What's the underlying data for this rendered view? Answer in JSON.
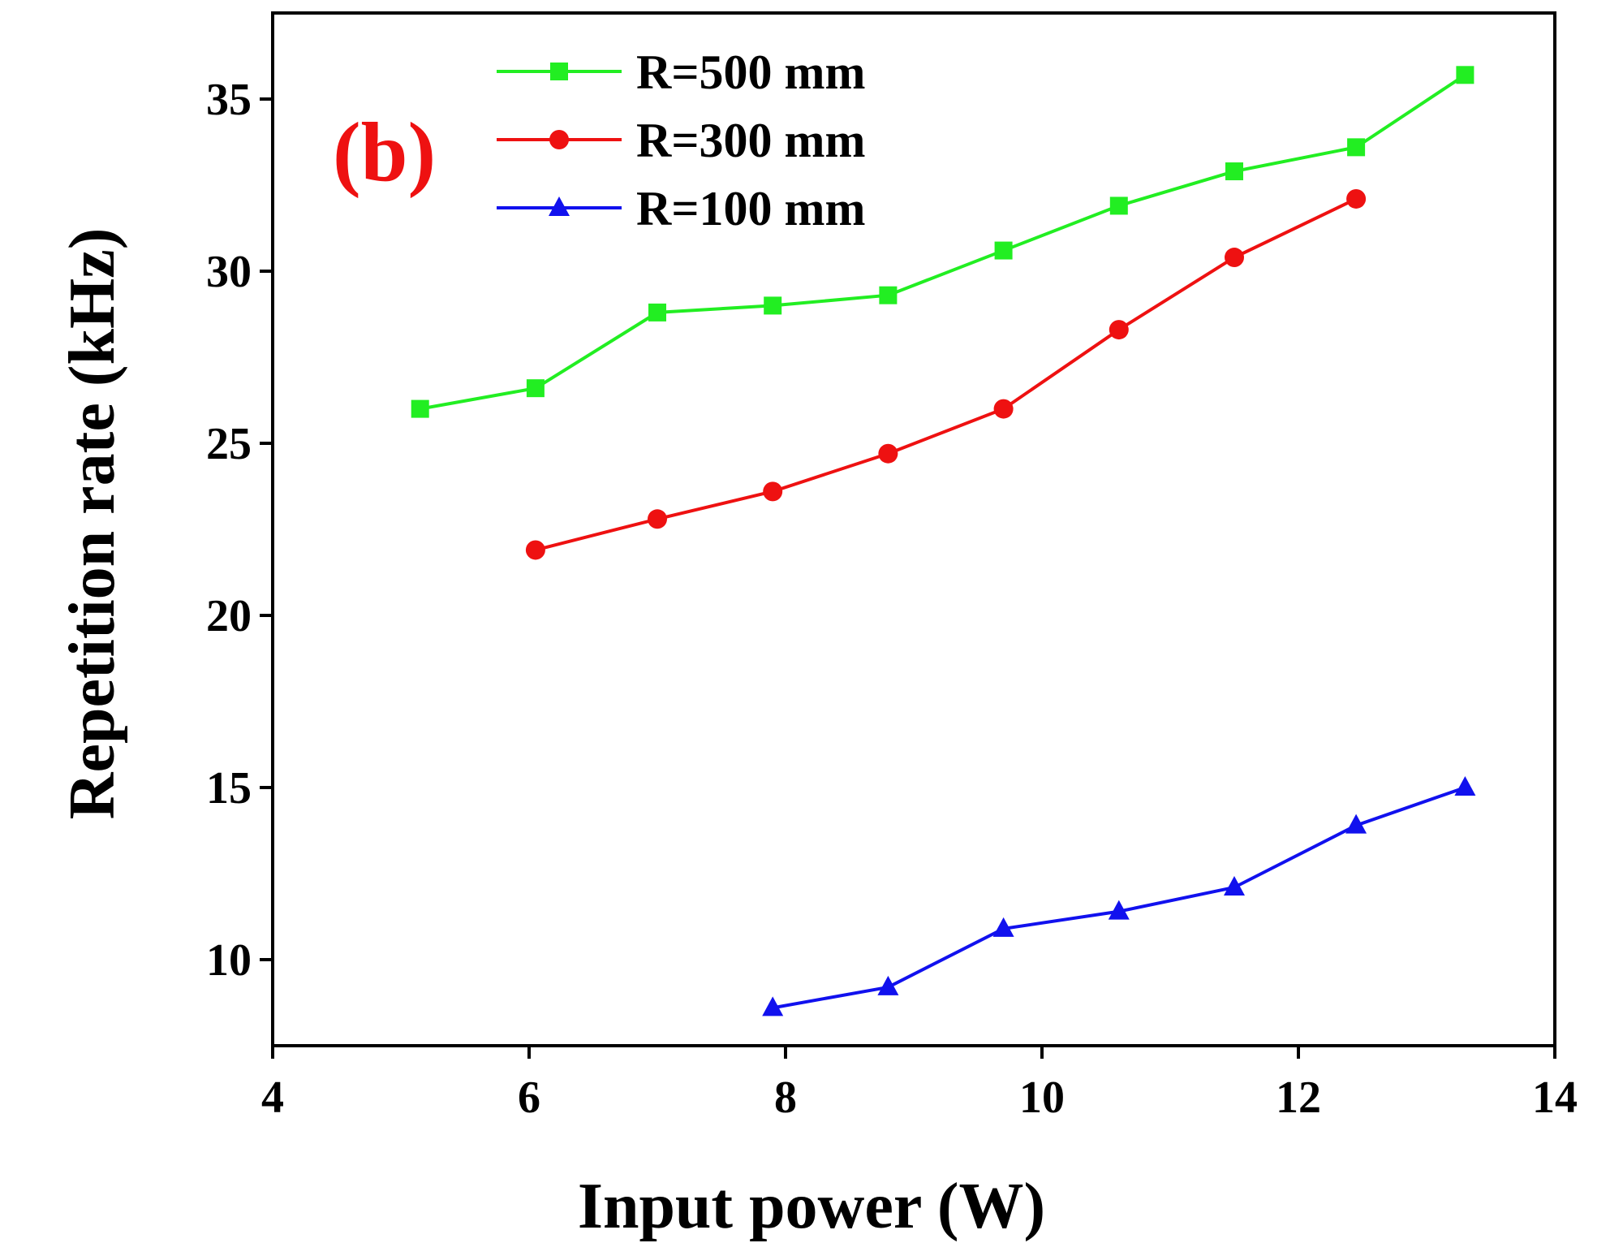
{
  "chart_data": {
    "type": "line",
    "title": "",
    "panel_label": "(b)",
    "panel_label_color": "#ee1111",
    "xlabel": "Input power (W)",
    "ylabel": "Repetition rate (kHz)",
    "xlim": [
      4,
      14
    ],
    "ylim": [
      7.5,
      37.5
    ],
    "xticks": [
      4,
      6,
      8,
      10,
      12,
      14
    ],
    "yticks": [
      10,
      15,
      20,
      25,
      30,
      35
    ],
    "grid": false,
    "legend_position": "top-center",
    "series": [
      {
        "name": "R=500 mm",
        "color": "#22ee22",
        "marker": "square",
        "x": [
          5.15,
          6.05,
          7.0,
          7.9,
          8.8,
          9.7,
          10.6,
          11.5,
          12.45,
          13.3
        ],
        "y": [
          26.0,
          26.6,
          28.8,
          29.0,
          29.3,
          30.6,
          31.9,
          32.9,
          33.6,
          35.7
        ]
      },
      {
        "name": "R=300 mm",
        "color": "#ee1111",
        "marker": "circle",
        "x": [
          6.05,
          7.0,
          7.9,
          8.8,
          9.7,
          10.6,
          11.5,
          12.45
        ],
        "y": [
          21.9,
          22.8,
          23.6,
          24.7,
          26.0,
          28.3,
          30.4,
          32.1
        ]
      },
      {
        "name": "R=100 mm",
        "color": "#1111ee",
        "marker": "triangle",
        "x": [
          7.9,
          8.8,
          9.7,
          10.6,
          11.5,
          12.45,
          13.3
        ],
        "y": [
          8.6,
          9.2,
          10.9,
          11.4,
          12.1,
          13.9,
          15.0
        ]
      }
    ]
  }
}
